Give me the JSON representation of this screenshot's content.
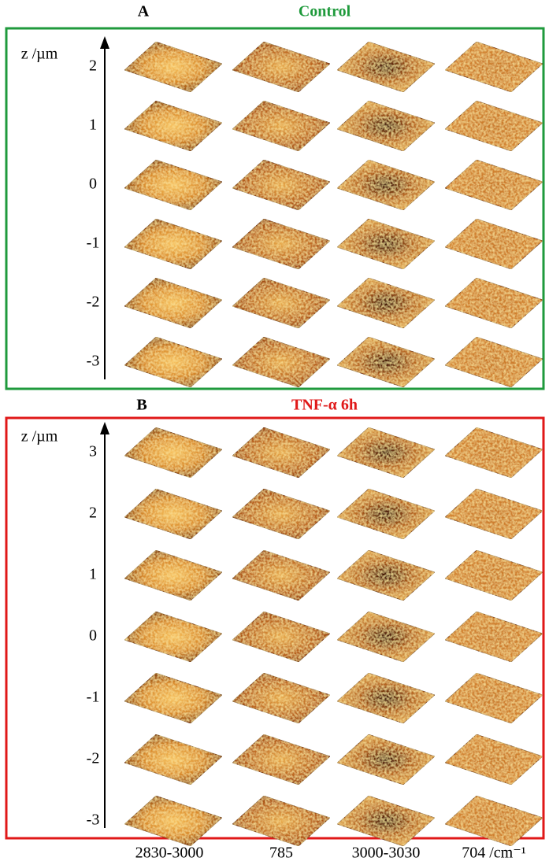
{
  "panels": [
    {
      "letter": "A",
      "title": "Control",
      "axis_label": "z /µm",
      "z_levels": [
        "2",
        "1",
        "0",
        "-1",
        "-2",
        "-3"
      ]
    },
    {
      "letter": "B",
      "title": "TNF-α 6h",
      "axis_label": "z /µm",
      "z_levels": [
        "3",
        "2",
        "1",
        "0",
        "-1",
        "-2",
        "-3"
      ]
    }
  ],
  "columns": [
    "2830-3000",
    "785",
    "3000-3030",
    "704 /cm⁻¹"
  ]
}
